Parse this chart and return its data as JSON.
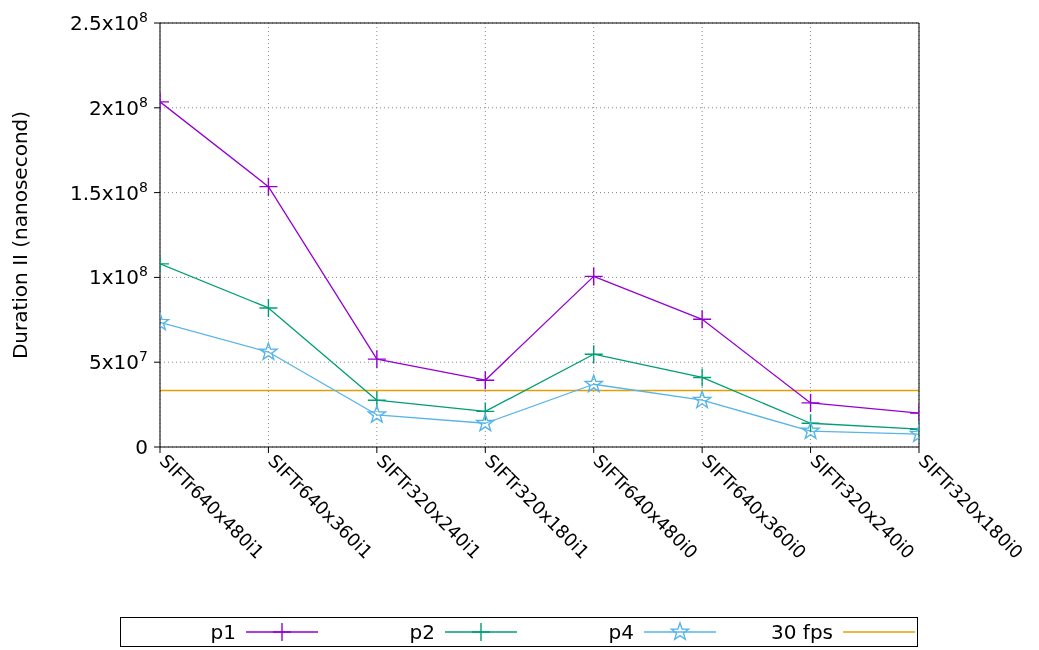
{
  "chart_data": {
    "type": "line",
    "ylabel": "Duration II (nanosecond)",
    "categories": [
      "SIFTr640x480i1",
      "SIFTr640x360i1",
      "SIFTr320x240i1",
      "SIFTr320x180i1",
      "SIFTr640x480i0",
      "SIFTr640x360i0",
      "SIFTr320x240i0",
      "SIFTr320x180i0"
    ],
    "series": [
      {
        "name": "p1",
        "color": "#9400d3",
        "marker": "cross",
        "values": [
          203500000,
          153500000,
          51800000,
          39400000,
          100600000,
          75300000,
          26000000,
          20000000
        ]
      },
      {
        "name": "p2",
        "color": "#009e73",
        "marker": "cross",
        "values": [
          108000000,
          82000000,
          27600000,
          21000000,
          54700000,
          41000000,
          14000000,
          10500000
        ]
      },
      {
        "name": "p4",
        "color": "#56b4e9",
        "marker": "star",
        "values": [
          73500000,
          56000000,
          19000000,
          14000000,
          37000000,
          27600000,
          9400000,
          7600000
        ]
      }
    ],
    "ref_lines": [
      {
        "axis": "y",
        "value": 33300000,
        "label": "30 fps",
        "color": "#e69f00"
      }
    ],
    "ylim": [
      0,
      250000000
    ],
    "yticks": [
      0,
      {
        "value": 50000000,
        "label": "5x10$^{7}$"
      },
      {
        "value": 100000000,
        "label": "1x10$^{8}$"
      },
      {
        "value": 150000000,
        "label": "1.5x10$^{8}$"
      },
      {
        "value": 200000000,
        "label": "2x10$^{8}$"
      },
      {
        "value": 250000000,
        "label": "2.5x10$^{8}$"
      }
    ],
    "grid": true,
    "legend": "bottom"
  }
}
